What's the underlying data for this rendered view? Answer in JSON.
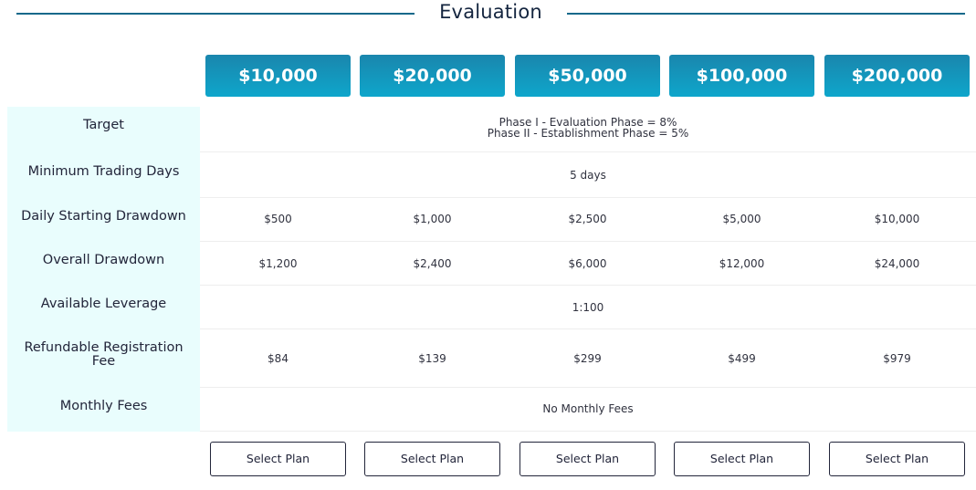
{
  "section": {
    "title": "Evaluation"
  },
  "plans": [
    {
      "price": "$10,000",
      "daily_drawdown": "$500",
      "overall_drawdown": "$1,200",
      "registration_fee": "$84",
      "button": "Select Plan"
    },
    {
      "price": "$20,000",
      "daily_drawdown": "$1,000",
      "overall_drawdown": "$2,400",
      "registration_fee": "$139",
      "button": "Select Plan"
    },
    {
      "price": "$50,000",
      "daily_drawdown": "$2,500",
      "overall_drawdown": "$6,000",
      "registration_fee": "$299",
      "button": "Select Plan"
    },
    {
      "price": "$100,000",
      "daily_drawdown": "$5,000",
      "overall_drawdown": "$12,000",
      "registration_fee": "$499",
      "button": "Select Plan"
    },
    {
      "price": "$200,000",
      "daily_drawdown": "$10,000",
      "overall_drawdown": "$24,000",
      "registration_fee": "$979",
      "button": "Select Plan"
    }
  ],
  "rows": {
    "target": {
      "label": "Target",
      "value_line1": "Phase I - Evaluation Phase = 8%",
      "value_line2": "Phase II - Establishment Phase = 5%"
    },
    "min_trading_days": {
      "label": "Minimum Trading Days",
      "value": "5 days"
    },
    "daily_drawdown": {
      "label": "Daily Starting Drawdown"
    },
    "overall_drawdown": {
      "label": "Overall Drawdown"
    },
    "leverage": {
      "label": "Available Leverage",
      "value": "1:100"
    },
    "registration_fee": {
      "label_line1": "Refundable Registration",
      "label_line2": "Fee"
    },
    "monthly_fees": {
      "label": "Monthly Fees",
      "value": "No Monthly Fees"
    }
  },
  "colors": {
    "header_gradient_top": "#1a86ad",
    "header_gradient_bottom": "#0ea6cb",
    "label_bg": "#e9fdfd",
    "title_line": "#15698a"
  }
}
